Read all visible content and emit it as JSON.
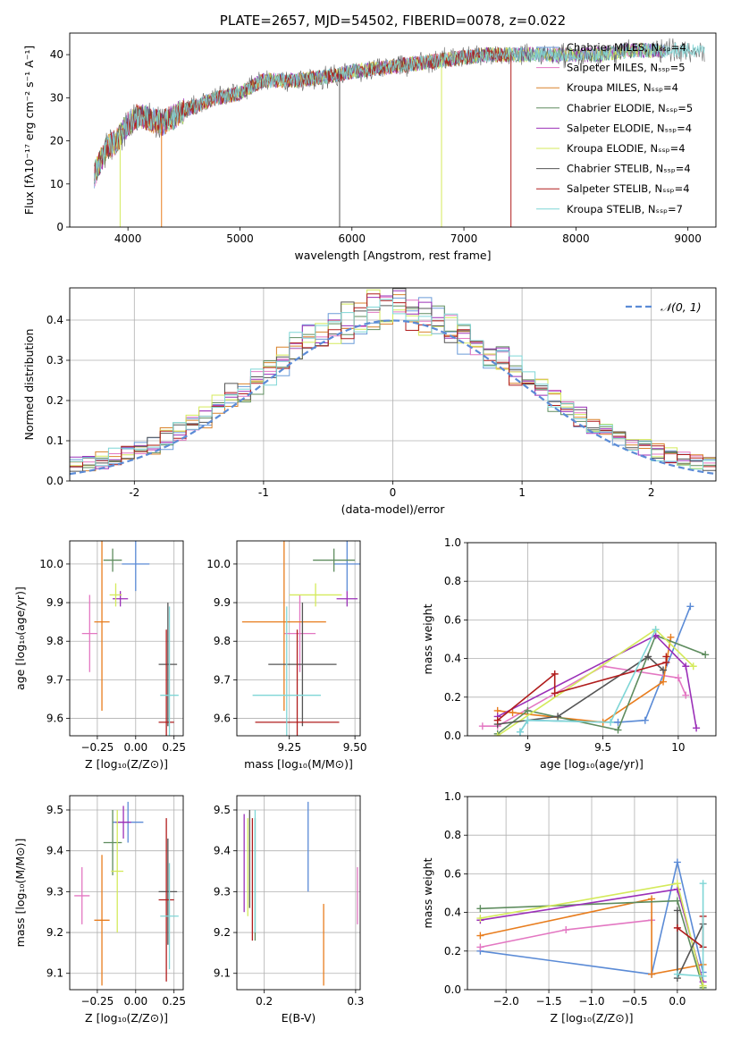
{
  "chart_data": [
    {
      "type": "line",
      "title": "PLATE=2657, MJD=54502, FIBERID=0078, z=0.022",
      "xlabel": "wavelength [Angstrom, rest frame]",
      "ylabel": "Flux [fλ10⁻¹⁷ erg cm⁻² s⁻¹ A⁻¹]",
      "xlim": [
        3480,
        9250
      ],
      "ylim": [
        0,
        45
      ],
      "xticks": [
        4000,
        5000,
        6000,
        7000,
        8000,
        9000
      ],
      "yticks": [
        0,
        10,
        20,
        30,
        40
      ],
      "legend_position": "upper right",
      "series": [
        {
          "name": "Chabrier MILES, N_SSP=4",
          "color": "#6a9bd8"
        },
        {
          "name": "Salpeter MILES, N_SSP=5",
          "color": "#e377c2"
        },
        {
          "name": "Kroupa MILES, N_SSP=4",
          "color": "#d9822b"
        },
        {
          "name": "Chabrier ELODIE, N_SSP=5",
          "color": "#5e8c5e"
        },
        {
          "name": "Salpeter ELODIE, N_SSP=4",
          "color": "#9b30b8"
        },
        {
          "name": "Kroupa ELODIE, N_SSP=4",
          "color": "#d4ea5b"
        },
        {
          "name": "Chabrier STELIB, N_SSP=4",
          "color": "#555555"
        },
        {
          "name": "Salpeter STELIB, N_SSP=4",
          "color": "#b01c1c"
        },
        {
          "name": "Kroupa STELIB, N_SSP=7",
          "color": "#7fd6d6"
        }
      ],
      "spectrum_anchors": {
        "x": [
          3700,
          3800,
          3900,
          4000,
          4100,
          4200,
          4300,
          4500,
          4800,
          5000,
          5200,
          5500,
          5800,
          6000,
          6300,
          6600,
          6900,
          7200,
          7500,
          7800,
          8000,
          8200,
          8500,
          8800,
          9150
        ],
        "y": [
          12,
          18,
          20,
          24,
          26,
          25,
          24,
          27,
          30,
          31,
          34,
          34,
          35,
          36,
          37,
          38,
          39,
          40,
          40,
          40,
          40,
          40,
          41,
          41,
          41
        ]
      },
      "sharp_drops": [
        3930,
        4300,
        5890,
        6800,
        7420
      ]
    },
    {
      "type": "bar",
      "title": "",
      "xlabel": "(data-model)/error",
      "ylabel": "Normed distribution",
      "xlim": [
        -2.5,
        2.5
      ],
      "ylim": [
        0,
        0.48
      ],
      "xticks": [
        -2,
        -1,
        0,
        1,
        2
      ],
      "yticks": [
        0.0,
        0.1,
        0.2,
        0.3,
        0.4
      ],
      "legend": [
        "𝒩(0, 1)"
      ],
      "legend_position": "upper right",
      "gaussian": {
        "mean": 0,
        "sigma": 1,
        "color": "#5b8bd6"
      },
      "bin_width": 0.1,
      "bin_edges_start": -2.5
    },
    {
      "type": "scatter",
      "title": "",
      "xlabel": "Z [log₁₀(Z/Z⊙)]",
      "ylabel": "age  [log₁₀(age/yr)]",
      "xlim": [
        -0.43,
        0.31
      ],
      "ylim": [
        9.555,
        10.06
      ],
      "xticks": [
        -0.25,
        0.0,
        0.25
      ],
      "xtick_labels": [
        "−0.25",
        "0.00",
        "0.25"
      ],
      "yticks": [
        9.6,
        9.7,
        9.8,
        9.9,
        10.0
      ],
      "points": [
        {
          "x": 0.0,
          "y": 10.0,
          "xerr": 0.09,
          "yerr": 0.07,
          "color": "#5b8bd6"
        },
        {
          "x": -0.3,
          "y": 9.82,
          "xerr": 0.05,
          "yerr": 0.1,
          "color": "#e377c2"
        },
        {
          "x": -0.22,
          "y": 9.85,
          "xerr": 0.05,
          "yerr": 0.23,
          "color": "#e87d1e"
        },
        {
          "x": -0.15,
          "y": 10.01,
          "xerr": 0.06,
          "yerr": 0.03,
          "color": "#5e8c5e"
        },
        {
          "x": -0.1,
          "y": 9.91,
          "xerr": 0.05,
          "yerr": 0.02,
          "color": "#9b30b8"
        },
        {
          "x": -0.13,
          "y": 9.92,
          "xerr": 0.04,
          "yerr": 0.03,
          "color": "#d4ea5b"
        },
        {
          "x": 0.21,
          "y": 9.74,
          "xerr": 0.06,
          "yerr": 0.16,
          "color": "#555555"
        },
        {
          "x": 0.2,
          "y": 9.59,
          "xerr": 0.05,
          "yerr": 0.24,
          "color": "#b01c1c"
        },
        {
          "x": 0.22,
          "y": 9.66,
          "xerr": 0.06,
          "yerr": 0.23,
          "color": "#7fd6d6"
        }
      ]
    },
    {
      "type": "scatter",
      "title": "",
      "xlabel": "mass [log₁₀(M/M⊙)]",
      "ylabel": "",
      "xlim": [
        9.05,
        9.52
      ],
      "ylim": [
        9.555,
        10.06
      ],
      "xticks": [
        9.25,
        9.5
      ],
      "xtick_labels": [
        "9.25",
        "9.50"
      ],
      "yticks": [
        9.6,
        9.7,
        9.8,
        9.9,
        10.0
      ],
      "points": [
        {
          "x": 9.47,
          "y": 10.0,
          "xerr": 0.05,
          "yerr": 0.07,
          "color": "#5b8bd6"
        },
        {
          "x": 9.29,
          "y": 9.82,
          "xerr": 0.06,
          "yerr": 0.1,
          "color": "#e377c2"
        },
        {
          "x": 9.23,
          "y": 9.85,
          "xerr": 0.16,
          "yerr": 0.23,
          "color": "#e87d1e"
        },
        {
          "x": 9.42,
          "y": 10.01,
          "xerr": 0.08,
          "yerr": 0.03,
          "color": "#5e8c5e"
        },
        {
          "x": 9.47,
          "y": 9.91,
          "xerr": 0.04,
          "yerr": 0.02,
          "color": "#9b30b8"
        },
        {
          "x": 9.35,
          "y": 9.92,
          "xerr": 0.1,
          "yerr": 0.03,
          "color": "#d4ea5b"
        },
        {
          "x": 9.3,
          "y": 9.74,
          "xerr": 0.13,
          "yerr": 0.16,
          "color": "#555555"
        },
        {
          "x": 9.28,
          "y": 9.59,
          "xerr": 0.16,
          "yerr": 0.24,
          "color": "#b01c1c"
        },
        {
          "x": 9.24,
          "y": 9.66,
          "xerr": 0.13,
          "yerr": 0.23,
          "color": "#7fd6d6"
        }
      ]
    },
    {
      "type": "line",
      "title": "",
      "xlabel": "age  [log₁₀(age/yr)]",
      "ylabel": "mass weight",
      "xlim": [
        8.6,
        10.25
      ],
      "ylim": [
        0,
        1
      ],
      "xticks": [
        9.0,
        9.5,
        10.0
      ],
      "yticks": [
        0.0,
        0.2,
        0.4,
        0.6,
        0.8,
        1.0
      ],
      "series": [
        {
          "color": "#5b8bd6",
          "x": [
            10.08,
            9.78,
            9.6,
            9.0,
            8.95
          ],
          "y": [
            0.67,
            0.08,
            0.07,
            0.08,
            0.02
          ]
        },
        {
          "color": "#e377c2",
          "x": [
            8.7,
            8.8,
            9.5,
            10.0,
            10.05
          ],
          "y": [
            0.05,
            0.05,
            0.36,
            0.3,
            0.21
          ]
        },
        {
          "color": "#e87d1e",
          "x": [
            8.8,
            8.9,
            9.5,
            9.9,
            9.95
          ],
          "y": [
            0.13,
            0.12,
            0.07,
            0.28,
            0.51
          ]
        },
        {
          "color": "#5e8c5e",
          "x": [
            8.8,
            9.0,
            9.6,
            9.85,
            10.18
          ],
          "y": [
            0.01,
            0.13,
            0.03,
            0.52,
            0.42
          ]
        },
        {
          "color": "#9b30b8",
          "x": [
            8.8,
            9.85,
            10.05,
            10.12
          ],
          "y": [
            0.1,
            0.52,
            0.36,
            0.04
          ]
        },
        {
          "color": "#d4ea5b",
          "x": [
            8.8,
            9.85,
            10.1
          ],
          "y": [
            0.0,
            0.55,
            0.36
          ]
        },
        {
          "color": "#555555",
          "x": [
            8.8,
            9.2,
            9.8,
            9.9
          ],
          "y": [
            0.06,
            0.1,
            0.41,
            0.34
          ]
        },
        {
          "color": "#b01c1c",
          "x": [
            8.8,
            9.18,
            9.18,
            9.92,
            9.92
          ],
          "y": [
            0.08,
            0.32,
            0.22,
            0.38,
            0.41
          ]
        },
        {
          "color": "#7fd6d6",
          "x": [
            8.95,
            9.0,
            9.55,
            9.85
          ],
          "y": [
            0.02,
            0.08,
            0.07,
            0.55
          ]
        }
      ]
    },
    {
      "type": "scatter",
      "title": "",
      "xlabel": "Z [log₁₀(Z/Z⊙)]",
      "ylabel": "mass [log₁₀(M/M⊙)]",
      "xlim": [
        -0.43,
        0.31
      ],
      "ylim": [
        9.06,
        9.535
      ],
      "xticks": [
        -0.25,
        0.0,
        0.25
      ],
      "xtick_labels": [
        "−0.25",
        "0.00",
        "0.25"
      ],
      "yticks": [
        9.1,
        9.2,
        9.3,
        9.4,
        9.5
      ],
      "points": [
        {
          "x": -0.05,
          "y": 9.47,
          "xerr": 0.1,
          "yerr": 0.05,
          "color": "#5b8bd6"
        },
        {
          "x": -0.35,
          "y": 9.29,
          "xerr": 0.05,
          "yerr": 0.07,
          "color": "#e377c2"
        },
        {
          "x": -0.22,
          "y": 9.23,
          "xerr": 0.05,
          "yerr": 0.16,
          "color": "#e87d1e"
        },
        {
          "x": -0.15,
          "y": 9.42,
          "xerr": 0.06,
          "yerr": 0.08,
          "color": "#5e8c5e"
        },
        {
          "x": -0.08,
          "y": 9.47,
          "xerr": 0.05,
          "yerr": 0.04,
          "color": "#9b30b8"
        },
        {
          "x": -0.12,
          "y": 9.35,
          "xerr": 0.04,
          "yerr": 0.15,
          "color": "#d4ea5b"
        },
        {
          "x": 0.21,
          "y": 9.3,
          "xerr": 0.06,
          "yerr": 0.13,
          "color": "#555555"
        },
        {
          "x": 0.2,
          "y": 9.28,
          "xerr": 0.05,
          "yerr": 0.2,
          "color": "#b01c1c"
        },
        {
          "x": 0.22,
          "y": 9.24,
          "xerr": 0.06,
          "yerr": 0.13,
          "color": "#7fd6d6"
        }
      ]
    },
    {
      "type": "scatter",
      "title": "",
      "xlabel": "E(B-V)",
      "ylabel": "",
      "xlim": [
        0.17,
        0.305
      ],
      "ylim": [
        9.06,
        9.535
      ],
      "xticks": [
        0.2,
        0.3
      ],
      "xtick_labels": [
        "0.2",
        "0.3"
      ],
      "yticks": [
        9.1,
        9.2,
        9.3,
        9.4,
        9.5
      ],
      "points": [
        {
          "x": 0.248,
          "y": 9.41,
          "xerr": 0.0,
          "yerr": 0.11,
          "color": "#5b8bd6"
        },
        {
          "x": 0.302,
          "y": 9.29,
          "xerr": 0.0,
          "yerr": 0.07,
          "color": "#e377c2"
        },
        {
          "x": 0.265,
          "y": 9.17,
          "xerr": 0.0,
          "yerr": 0.1,
          "color": "#e87d1e"
        },
        {
          "x": 0.19,
          "y": 9.33,
          "xerr": 0.0,
          "yerr": 0.15,
          "color": "#5e8c5e"
        },
        {
          "x": 0.178,
          "y": 9.37,
          "xerr": 0.0,
          "yerr": 0.12,
          "color": "#9b30b8"
        },
        {
          "x": 0.182,
          "y": 9.36,
          "xerr": 0.0,
          "yerr": 0.12,
          "color": "#d4ea5b"
        },
        {
          "x": 0.184,
          "y": 9.38,
          "xerr": 0.0,
          "yerr": 0.12,
          "color": "#555555"
        },
        {
          "x": 0.187,
          "y": 9.33,
          "xerr": 0.0,
          "yerr": 0.15,
          "color": "#b01c1c"
        },
        {
          "x": 0.19,
          "y": 9.35,
          "xerr": 0.0,
          "yerr": 0.15,
          "color": "#7fd6d6"
        }
      ]
    },
    {
      "type": "line",
      "title": "",
      "xlabel": "Z [log₁₀(Z/Z⊙)]",
      "ylabel": "mass weight",
      "xlim": [
        -2.45,
        0.45
      ],
      "ylim": [
        0,
        1
      ],
      "xticks": [
        -2.0,
        -1.5,
        -1.0,
        -0.5,
        0.0
      ],
      "xtick_labels": [
        "−2.0",
        "−1.5",
        "−1.0",
        "−0.5",
        "0.0"
      ],
      "yticks": [
        0.0,
        0.2,
        0.4,
        0.6,
        0.8,
        1.0
      ],
      "series": [
        {
          "color": "#5b8bd6",
          "x": [
            -2.3,
            -0.3,
            0.0,
            0.3
          ],
          "y": [
            0.2,
            0.08,
            0.66,
            0.09
          ]
        },
        {
          "color": "#e377c2",
          "x": [
            -2.3,
            -1.3,
            -0.3
          ],
          "y": [
            0.22,
            0.31,
            0.36
          ]
        },
        {
          "color": "#e87d1e",
          "x": [
            -2.3,
            -0.3,
            -0.3,
            0.3
          ],
          "y": [
            0.28,
            0.47,
            0.08,
            0.13
          ]
        },
        {
          "color": "#5e8c5e",
          "x": [
            -2.3,
            0.0,
            0.3
          ],
          "y": [
            0.42,
            0.46,
            0.01
          ]
        },
        {
          "color": "#9b30b8",
          "x": [
            -2.3,
            0.0,
            0.3
          ],
          "y": [
            0.36,
            0.52,
            0.04
          ]
        },
        {
          "color": "#d4ea5b",
          "x": [
            -2.3,
            0.0,
            0.3
          ],
          "y": [
            0.37,
            0.55,
            0.02
          ]
        },
        {
          "color": "#555555",
          "x": [
            0.0,
            0.0,
            0.3
          ],
          "y": [
            0.41,
            0.06,
            0.34
          ]
        },
        {
          "color": "#b01c1c",
          "x": [
            0.0,
            0.3,
            0.3
          ],
          "y": [
            0.32,
            0.22,
            0.38
          ]
        },
        {
          "color": "#7fd6d6",
          "x": [
            0.0,
            0.3,
            0.3
          ],
          "y": [
            0.08,
            0.07,
            0.55
          ]
        }
      ]
    }
  ]
}
